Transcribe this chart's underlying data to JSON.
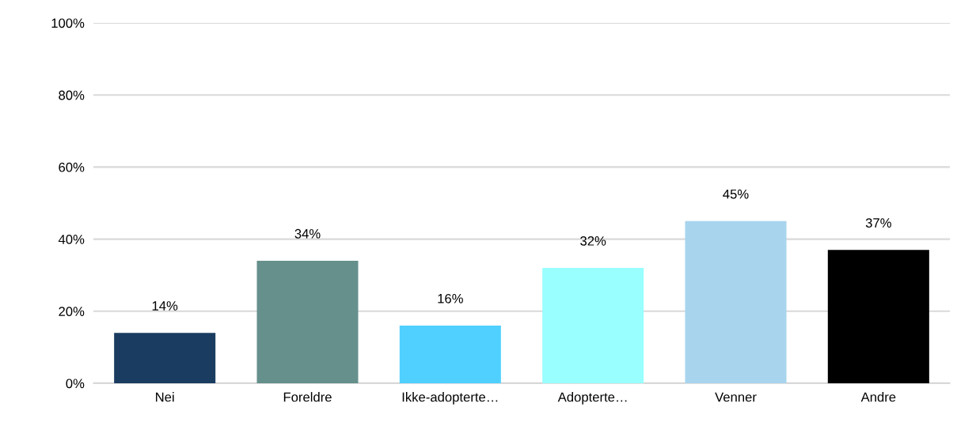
{
  "chart_data": {
    "type": "bar",
    "categories": [
      "Nei",
      "Foreldre",
      "Ikke-adopterte…",
      "Adopterte…",
      "Venner",
      "Andre"
    ],
    "values": [
      14,
      34,
      16,
      32,
      45,
      37
    ],
    "colors": [
      "#1a3c60",
      "#66908c",
      "#50d0ff",
      "#99ffff",
      "#a8d4ee",
      "#000000"
    ],
    "value_labels": [
      "14%",
      "34%",
      "16%",
      "32%",
      "45%",
      "37%"
    ],
    "ylim": [
      0,
      100
    ],
    "yticks": [
      {
        "value": 0,
        "label": "0%"
      },
      {
        "value": 20,
        "label": "20%"
      },
      {
        "value": 40,
        "label": "40%"
      },
      {
        "value": 60,
        "label": "60%"
      },
      {
        "value": 80,
        "label": "80%"
      },
      {
        "value": 100,
        "label": "100%"
      }
    ],
    "grid": "y",
    "legend": false
  }
}
